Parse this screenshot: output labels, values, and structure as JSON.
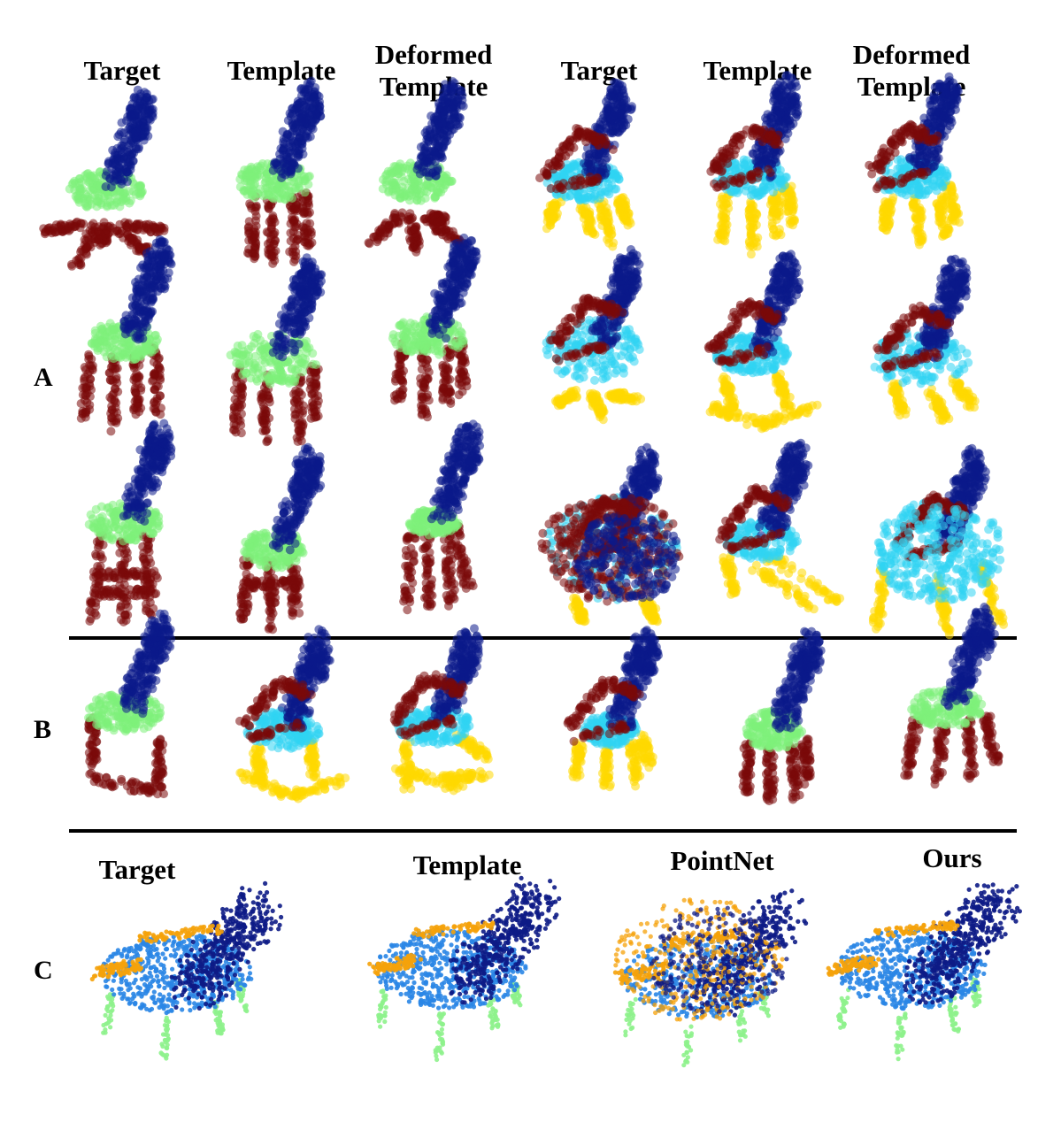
{
  "header_top": [
    "Target",
    "Template",
    "Deformed Template",
    "Target",
    "Template",
    "Deformed Template"
  ],
  "section_labels": {
    "a": "A",
    "b": "B",
    "c": "C"
  },
  "header_c": [
    "Target",
    "Template",
    "PointNet",
    "Ours"
  ],
  "colors": {
    "back": "#0b1a8a",
    "seat_green": "#7ef07a",
    "legs_red": "#7a0a0a",
    "seat_cyan": "#2fd3f2",
    "arms_red": "#7a0a0a",
    "legs_yellow": "#ffd800",
    "c_back": "#0d1b86",
    "c_seat": "#2a86e6",
    "c_arms": "#f5a20a",
    "c_legs": "#8ef28c"
  }
}
